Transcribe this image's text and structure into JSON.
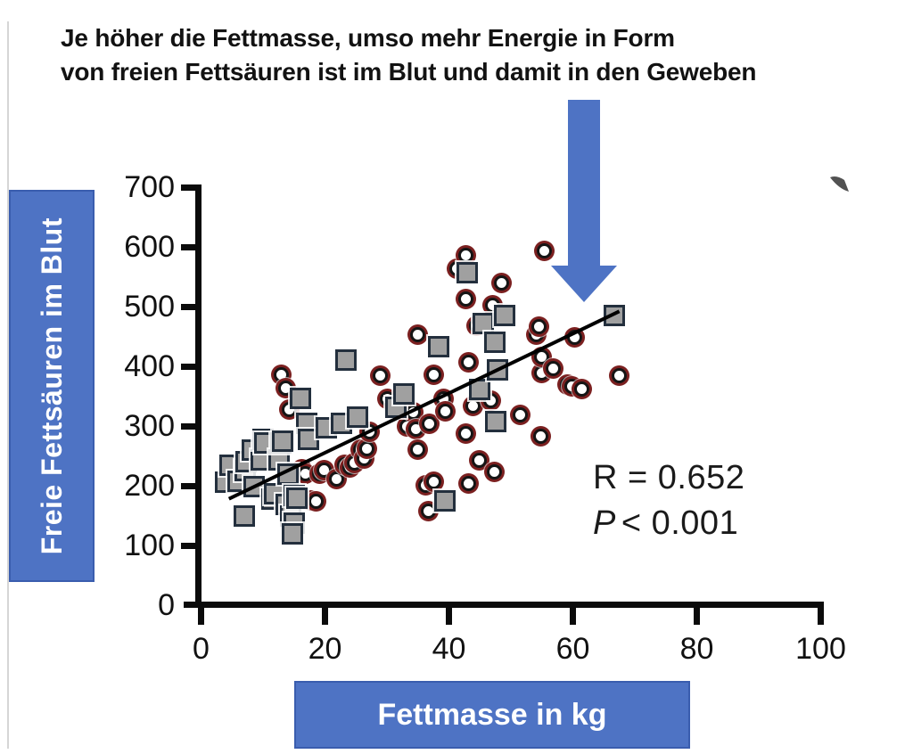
{
  "page": {
    "title_line1": "Je höher die Fettmasse, umso mehr Energie in Form",
    "title_line2": "von freien Fettsäuren ist im Blut und damit in den Geweben"
  },
  "axis_labels": {
    "y": "Freie Fettsäuren im Blut",
    "x": "Fettmasse in kg"
  },
  "annotation": {
    "r": "R = 0.652",
    "p_prefix": "P",
    "p_rest": "< 0.001"
  },
  "colors": {
    "accent_blue": "#4e73c4",
    "accent_blue_dark": "#3a5dae",
    "circle_ring": "#7b2020",
    "circle_fill": "#ffffff",
    "circle_stroke": "#151515",
    "square_fill": "#a0a0a0",
    "square_stroke": "#232f3d",
    "trend_line": "#000000"
  },
  "chart_data": {
    "type": "scatter",
    "title": "Je höher die Fettmasse, umso mehr Energie in Form von freien Fettsäuren ist im Blut und damit in den Geweben",
    "xlabel": "Fettmasse in kg",
    "ylabel": "Freie Fettsäuren im Blut",
    "xlim": [
      0,
      100
    ],
    "ylim": [
      0,
      700
    ],
    "x_ticks": [
      0,
      20,
      40,
      60,
      80,
      100
    ],
    "y_ticks": [
      0,
      100,
      200,
      300,
      400,
      500,
      600,
      700
    ],
    "grid": false,
    "legend": false,
    "stats": {
      "R": "0.652",
      "P": "< 0.001"
    },
    "trend_line": {
      "x1": 4.5,
      "y1": 178,
      "x2": 67.5,
      "y2": 492
    },
    "series": [
      {
        "name": "circle-markers",
        "marker": "circle",
        "points": [
          [
            12.9,
            386
          ],
          [
            13.7,
            364
          ],
          [
            14.2,
            327
          ],
          [
            16.3,
            228
          ],
          [
            16.9,
            220
          ],
          [
            17.7,
            176
          ],
          [
            18.5,
            174
          ],
          [
            19.2,
            220
          ],
          [
            19.8,
            226
          ],
          [
            21.9,
            211
          ],
          [
            23.1,
            235
          ],
          [
            24.1,
            231
          ],
          [
            24.8,
            238
          ],
          [
            25.7,
            260
          ],
          [
            26.3,
            246
          ],
          [
            26.8,
            262
          ],
          [
            27.2,
            290
          ],
          [
            28.9,
            385
          ],
          [
            30.1,
            346
          ],
          [
            33.3,
            300
          ],
          [
            34.3,
            323
          ],
          [
            34.7,
            295
          ],
          [
            34.9,
            453
          ],
          [
            35,
            260
          ],
          [
            36.2,
            201
          ],
          [
            36.7,
            157
          ],
          [
            36.9,
            303
          ],
          [
            37.6,
            206
          ],
          [
            37.6,
            386
          ],
          [
            39.1,
            345
          ],
          [
            39.4,
            324
          ],
          [
            41.3,
            564
          ],
          [
            42.7,
            586
          ],
          [
            42.7,
            512
          ],
          [
            42.7,
            287
          ],
          [
            43.2,
            204
          ],
          [
            43.2,
            406
          ],
          [
            43.9,
            334
          ],
          [
            44.5,
            468
          ],
          [
            44.9,
            243
          ],
          [
            46.8,
            342
          ],
          [
            47.1,
            502
          ],
          [
            47.3,
            223
          ],
          [
            48.5,
            539
          ],
          [
            51.5,
            318
          ],
          [
            54.1,
            453
          ],
          [
            54.8,
            283
          ],
          [
            54.6,
            467
          ],
          [
            55,
            389
          ],
          [
            55,
            416
          ],
          [
            55.4,
            593
          ],
          [
            56.8,
            396
          ],
          [
            59.2,
            369
          ],
          [
            59.8,
            366
          ],
          [
            61.4,
            362
          ],
          [
            60.3,
            448
          ],
          [
            67.5,
            384
          ]
        ]
      },
      {
        "name": "square-markers",
        "marker": "square",
        "points": [
          [
            4,
            206
          ],
          [
            4.7,
            234
          ],
          [
            6,
            207
          ],
          [
            7,
            149
          ],
          [
            7.1,
            226
          ],
          [
            7.3,
            241
          ],
          [
            8.3,
            260
          ],
          [
            8.6,
            198
          ],
          [
            9.7,
            243
          ],
          [
            10,
            278
          ],
          [
            10.3,
            272
          ],
          [
            11.5,
            178
          ],
          [
            11.8,
            186
          ],
          [
            12.6,
            243
          ],
          [
            12.9,
            271
          ],
          [
            13.2,
            275
          ],
          [
            13.7,
            169
          ],
          [
            14,
            219
          ],
          [
            14.4,
            149
          ],
          [
            15,
            137
          ],
          [
            14.7,
            120
          ],
          [
            15.1,
            184
          ],
          [
            15.4,
            179
          ],
          [
            16.1,
            346
          ],
          [
            17,
            305
          ],
          [
            17.3,
            278
          ],
          [
            20.2,
            297
          ],
          [
            22.7,
            305
          ],
          [
            23.4,
            410
          ],
          [
            25.3,
            315
          ],
          [
            31.4,
            331
          ],
          [
            32.8,
            354
          ],
          [
            38.4,
            433
          ],
          [
            39.3,
            175
          ],
          [
            43,
            556
          ],
          [
            44.9,
            361
          ],
          [
            45.6,
            471
          ],
          [
            47.4,
            441
          ],
          [
            47.5,
            308
          ],
          [
            47.8,
            394
          ],
          [
            49,
            485
          ],
          [
            66.7,
            485
          ]
        ]
      }
    ]
  }
}
